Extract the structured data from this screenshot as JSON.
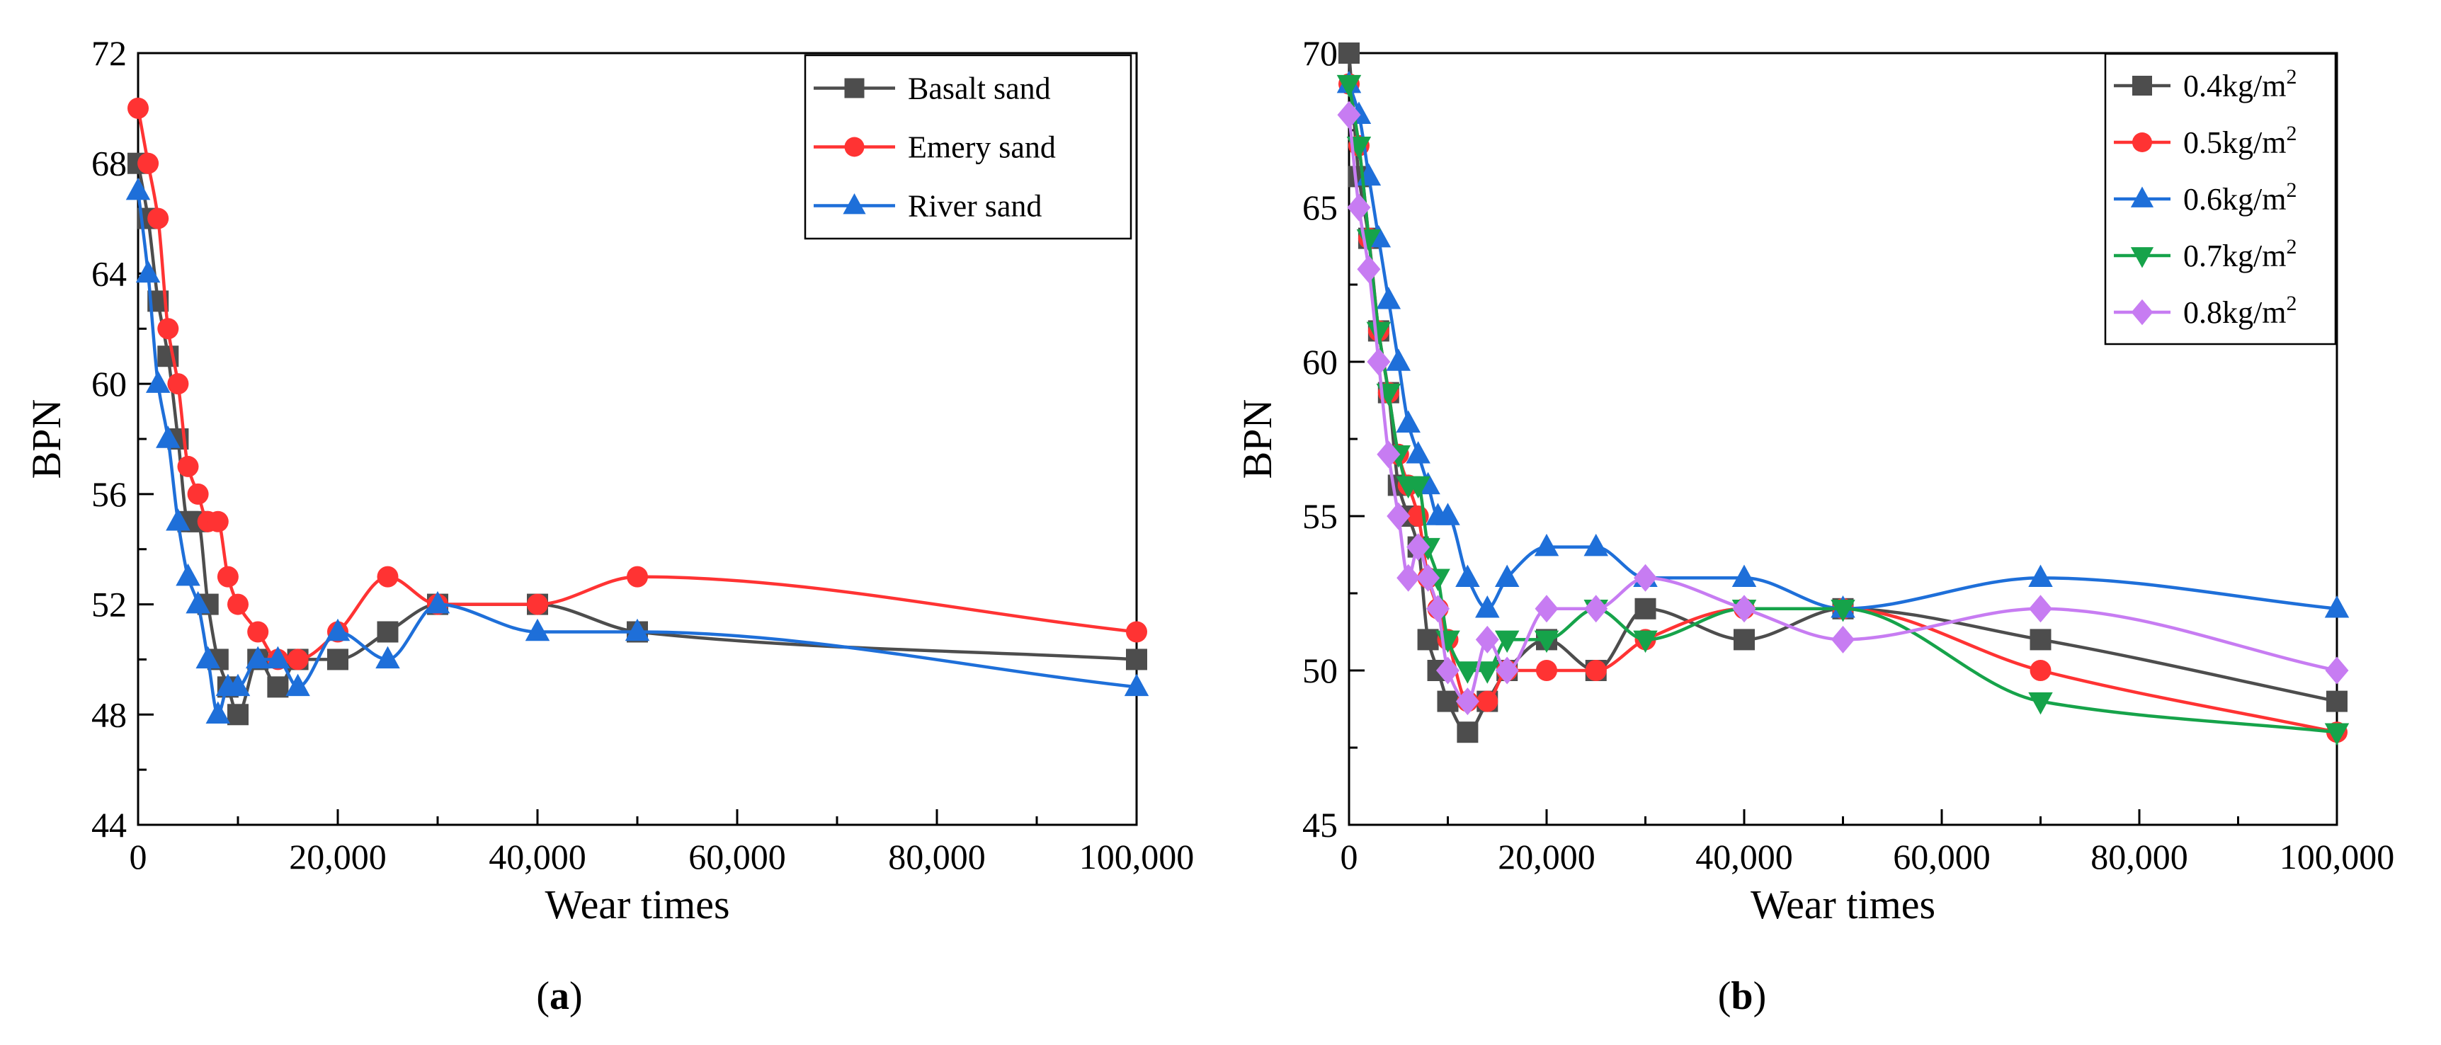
{
  "chart_data": [
    {
      "type": "line",
      "xlabel": "Wear times",
      "ylabel": "BPN",
      "xlim": [
        0,
        100000
      ],
      "ylim": [
        44,
        72
      ],
      "xticks": [
        0,
        20000,
        40000,
        60000,
        80000,
        100000
      ],
      "xtick_labels": [
        "0",
        "20,000",
        "40,000",
        "60,000",
        "80,000",
        "100,000"
      ],
      "yticks": [
        44,
        48,
        52,
        56,
        60,
        64,
        68,
        72
      ],
      "ytick_labels": [
        "44",
        "48",
        "52",
        "56",
        "60",
        "64",
        "68",
        "72"
      ],
      "legend_position": "top-right",
      "caption": {
        "open": "(",
        "letter": "a",
        "close": ")"
      },
      "series": [
        {
          "name": "Basalt sand",
          "color": "#4d4d4d",
          "marker": "square",
          "x": [
            0,
            1000,
            2000,
            3000,
            4000,
            5000,
            6000,
            7000,
            8000,
            9000,
            10000,
            12000,
            14000,
            16000,
            20000,
            25000,
            30000,
            40000,
            50000,
            100000
          ],
          "y": [
            68,
            66,
            63,
            61,
            58,
            55,
            55,
            52,
            50,
            49,
            48,
            50,
            49,
            50,
            50,
            51,
            52,
            52,
            51,
            50
          ]
        },
        {
          "name": "Emery sand",
          "color": "#ff3333",
          "marker": "circle",
          "x": [
            0,
            1000,
            2000,
            3000,
            4000,
            5000,
            6000,
            7000,
            8000,
            9000,
            10000,
            12000,
            14000,
            16000,
            20000,
            25000,
            30000,
            40000,
            50000,
            100000
          ],
          "y": [
            70,
            68,
            66,
            62,
            60,
            57,
            56,
            55,
            55,
            53,
            52,
            51,
            50,
            50,
            51,
            53,
            52,
            52,
            53,
            51
          ]
        },
        {
          "name": "River sand",
          "color": "#1e6fd9",
          "marker": "triangle-up",
          "x": [
            0,
            1000,
            2000,
            3000,
            4000,
            5000,
            6000,
            7000,
            8000,
            9000,
            10000,
            12000,
            14000,
            16000,
            20000,
            25000,
            30000,
            40000,
            50000,
            100000
          ],
          "y": [
            67,
            64,
            60,
            58,
            55,
            53,
            52,
            50,
            48,
            49,
            49,
            50,
            50,
            49,
            51,
            50,
            52,
            51,
            51,
            49
          ]
        }
      ]
    },
    {
      "type": "line",
      "xlabel": "Wear times",
      "ylabel": "BPN",
      "xlim": [
        0,
        100000
      ],
      "ylim": [
        45,
        70
      ],
      "xticks": [
        0,
        20000,
        40000,
        60000,
        80000,
        100000
      ],
      "xtick_labels": [
        "0",
        "20,000",
        "40,000",
        "60,000",
        "80,000",
        "100,000"
      ],
      "yticks": [
        45,
        50,
        55,
        60,
        65,
        70
      ],
      "ytick_labels": [
        "45",
        "50",
        "55",
        "60",
        "65",
        "70"
      ],
      "legend_position": "top-right",
      "caption": {
        "open": "(",
        "letter": "b",
        "close": ")"
      },
      "series": [
        {
          "name": "0.4kg/m",
          "superscript": "2",
          "color": "#4d4d4d",
          "marker": "square",
          "x": [
            0,
            1000,
            2000,
            3000,
            4000,
            5000,
            6000,
            7000,
            8000,
            9000,
            10000,
            12000,
            14000,
            16000,
            20000,
            25000,
            30000,
            40000,
            50000,
            70000,
            100000
          ],
          "y": [
            70,
            66,
            64,
            61,
            59,
            56,
            55,
            54,
            51,
            50,
            49,
            48,
            49,
            50,
            51,
            50,
            52,
            51,
            52,
            51,
            49
          ]
        },
        {
          "name": "0.5kg/m",
          "superscript": "2",
          "color": "#ff3333",
          "marker": "circle",
          "x": [
            0,
            1000,
            2000,
            3000,
            4000,
            5000,
            6000,
            7000,
            8000,
            9000,
            10000,
            12000,
            14000,
            16000,
            20000,
            25000,
            30000,
            40000,
            50000,
            70000,
            100000
          ],
          "y": [
            69,
            67,
            64,
            61,
            59,
            57,
            56,
            55,
            53,
            52,
            51,
            49,
            49,
            50,
            50,
            50,
            51,
            52,
            52,
            50,
            48
          ]
        },
        {
          "name": "0.6kg/m",
          "superscript": "2",
          "color": "#1e6fd9",
          "marker": "triangle-up",
          "x": [
            0,
            1000,
            2000,
            3000,
            4000,
            5000,
            6000,
            7000,
            8000,
            9000,
            10000,
            12000,
            14000,
            16000,
            20000,
            25000,
            30000,
            40000,
            50000,
            70000,
            100000
          ],
          "y": [
            69,
            68,
            66,
            64,
            62,
            60,
            58,
            57,
            56,
            55,
            55,
            53,
            52,
            53,
            54,
            54,
            53,
            53,
            52,
            53,
            52
          ]
        },
        {
          "name": "0.7kg/m",
          "superscript": "2",
          "color": "#16a34a",
          "marker": "triangle-down",
          "x": [
            0,
            1000,
            2000,
            3000,
            4000,
            5000,
            6000,
            7000,
            8000,
            9000,
            10000,
            12000,
            14000,
            16000,
            20000,
            25000,
            30000,
            40000,
            50000,
            70000,
            100000
          ],
          "y": [
            69,
            67,
            64,
            61,
            59,
            57,
            56,
            56,
            54,
            53,
            51,
            50,
            50,
            51,
            51,
            52,
            51,
            52,
            52,
            49,
            48
          ]
        },
        {
          "name": "0.8kg/m",
          "superscript": "2",
          "color": "#c77cf2",
          "marker": "diamond",
          "x": [
            0,
            1000,
            2000,
            3000,
            4000,
            5000,
            6000,
            7000,
            8000,
            9000,
            10000,
            12000,
            14000,
            16000,
            20000,
            25000,
            30000,
            40000,
            50000,
            70000,
            100000
          ],
          "y": [
            68,
            65,
            63,
            60,
            57,
            55,
            53,
            54,
            53,
            52,
            50,
            49,
            51,
            50,
            52,
            52,
            53,
            52,
            51,
            52,
            50
          ]
        }
      ]
    }
  ]
}
